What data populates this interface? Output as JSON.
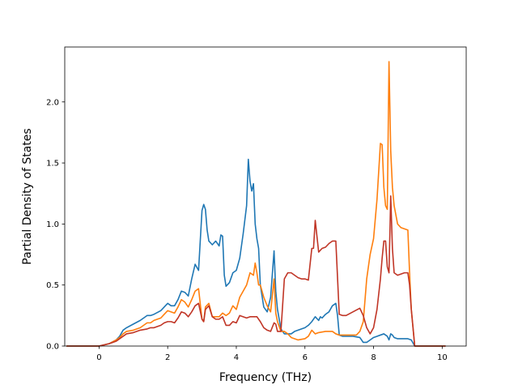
{
  "chart_data": {
    "type": "line",
    "title": "",
    "xlabel": "Frequency (THz)",
    "ylabel": "Partial Density of States",
    "xlim": [
      -1.0,
      10.7
    ],
    "ylim": [
      0.0,
      2.45
    ],
    "xticks": [
      0,
      2,
      4,
      6,
      8,
      10
    ],
    "yticks": [
      0.0,
      0.5,
      1.0,
      1.5,
      2.0
    ],
    "xtick_labels": [
      "0",
      "2",
      "4",
      "6",
      "8",
      "10"
    ],
    "ytick_labels": [
      "0.0",
      "0.5",
      "1.0",
      "1.5",
      "2.0"
    ],
    "grid": false,
    "legend": "none",
    "series": [
      {
        "color": "#1f77b4",
        "x": [
          -0.95,
          0.0,
          0.3,
          0.5,
          0.6,
          0.7,
          0.8,
          1.0,
          1.2,
          1.4,
          1.5,
          1.6,
          1.8,
          1.9,
          2.0,
          2.1,
          2.2,
          2.3,
          2.4,
          2.5,
          2.6,
          2.7,
          2.8,
          2.9,
          3.0,
          3.05,
          3.1,
          3.15,
          3.2,
          3.3,
          3.4,
          3.5,
          3.55,
          3.6,
          3.65,
          3.7,
          3.8,
          3.9,
          4.0,
          4.1,
          4.2,
          4.3,
          4.35,
          4.4,
          4.45,
          4.5,
          4.55,
          4.6,
          4.65,
          4.7,
          4.8,
          4.9,
          5.0,
          5.1,
          5.15,
          5.2,
          5.25,
          5.3,
          5.4,
          5.5,
          5.6,
          5.7,
          5.8,
          5.9,
          6.0,
          6.1,
          6.2,
          6.3,
          6.4,
          6.45,
          6.5,
          6.6,
          6.7,
          6.8,
          6.9,
          6.95,
          7.0,
          7.1,
          7.2,
          7.4,
          7.6,
          7.7,
          7.8,
          7.9,
          8.0,
          8.1,
          8.2,
          8.3,
          8.4,
          8.45,
          8.5,
          8.55,
          8.6,
          8.7,
          8.8,
          9.0,
          9.1,
          9.2,
          10.1
        ],
        "y": [
          0.0,
          0.0,
          0.02,
          0.05,
          0.08,
          0.13,
          0.15,
          0.18,
          0.21,
          0.25,
          0.25,
          0.26,
          0.29,
          0.32,
          0.35,
          0.33,
          0.33,
          0.38,
          0.45,
          0.44,
          0.41,
          0.55,
          0.67,
          0.62,
          1.11,
          1.16,
          1.12,
          0.95,
          0.86,
          0.83,
          0.86,
          0.82,
          0.91,
          0.9,
          0.58,
          0.49,
          0.52,
          0.6,
          0.62,
          0.72,
          0.92,
          1.15,
          1.53,
          1.35,
          1.27,
          1.33,
          1.0,
          0.88,
          0.8,
          0.5,
          0.32,
          0.28,
          0.4,
          0.78,
          0.45,
          0.3,
          0.22,
          0.14,
          0.1,
          0.1,
          0.1,
          0.12,
          0.13,
          0.14,
          0.15,
          0.17,
          0.2,
          0.24,
          0.21,
          0.24,
          0.23,
          0.26,
          0.28,
          0.33,
          0.35,
          0.25,
          0.09,
          0.08,
          0.08,
          0.08,
          0.07,
          0.03,
          0.03,
          0.05,
          0.07,
          0.08,
          0.09,
          0.1,
          0.08,
          0.05,
          0.1,
          0.09,
          0.07,
          0.06,
          0.06,
          0.06,
          0.05,
          0.0,
          0.0
        ]
      },
      {
        "color": "#ff7f0e",
        "x": [
          -0.95,
          0.0,
          0.3,
          0.5,
          0.6,
          0.7,
          0.8,
          1.0,
          1.2,
          1.4,
          1.5,
          1.6,
          1.8,
          1.9,
          2.0,
          2.1,
          2.2,
          2.3,
          2.4,
          2.5,
          2.6,
          2.7,
          2.8,
          2.9,
          3.0,
          3.05,
          3.1,
          3.2,
          3.3,
          3.4,
          3.5,
          3.6,
          3.7,
          3.8,
          3.9,
          4.0,
          4.1,
          4.2,
          4.3,
          4.4,
          4.5,
          4.55,
          4.6,
          4.65,
          4.7,
          4.8,
          4.9,
          5.0,
          5.1,
          5.15,
          5.2,
          5.3,
          5.4,
          5.5,
          5.6,
          5.8,
          6.0,
          6.1,
          6.2,
          6.3,
          6.4,
          6.6,
          6.8,
          6.9,
          7.0,
          7.2,
          7.4,
          7.5,
          7.6,
          7.7,
          7.8,
          7.9,
          8.0,
          8.1,
          8.2,
          8.25,
          8.3,
          8.35,
          8.4,
          8.45,
          8.5,
          8.55,
          8.6,
          8.7,
          8.8,
          9.0,
          9.05,
          9.1,
          9.2,
          10.1
        ],
        "y": [
          0.0,
          0.0,
          0.02,
          0.05,
          0.07,
          0.1,
          0.12,
          0.13,
          0.15,
          0.19,
          0.19,
          0.21,
          0.23,
          0.26,
          0.29,
          0.28,
          0.27,
          0.32,
          0.38,
          0.36,
          0.32,
          0.38,
          0.45,
          0.47,
          0.22,
          0.2,
          0.32,
          0.35,
          0.24,
          0.24,
          0.24,
          0.27,
          0.25,
          0.27,
          0.33,
          0.3,
          0.4,
          0.45,
          0.5,
          0.6,
          0.58,
          0.68,
          0.6,
          0.5,
          0.5,
          0.4,
          0.33,
          0.28,
          0.55,
          0.27,
          0.2,
          0.12,
          0.12,
          0.1,
          0.07,
          0.05,
          0.06,
          0.08,
          0.13,
          0.1,
          0.11,
          0.12,
          0.12,
          0.1,
          0.09,
          0.09,
          0.09,
          0.09,
          0.12,
          0.2,
          0.55,
          0.75,
          0.88,
          1.2,
          1.66,
          1.65,
          1.3,
          1.15,
          1.12,
          2.33,
          1.6,
          1.3,
          1.15,
          1.0,
          0.97,
          0.95,
          0.6,
          0.3,
          0.0,
          0.0
        ]
      },
      {
        "color": "#c03526",
        "x": [
          -0.95,
          0.0,
          0.3,
          0.5,
          0.6,
          0.7,
          0.8,
          1.0,
          1.2,
          1.4,
          1.5,
          1.6,
          1.8,
          1.9,
          2.0,
          2.1,
          2.2,
          2.3,
          2.4,
          2.5,
          2.6,
          2.7,
          2.8,
          2.9,
          3.0,
          3.05,
          3.1,
          3.2,
          3.3,
          3.4,
          3.5,
          3.6,
          3.7,
          3.8,
          3.9,
          4.0,
          4.1,
          4.2,
          4.3,
          4.4,
          4.5,
          4.6,
          4.7,
          4.8,
          4.9,
          5.0,
          5.1,
          5.15,
          5.2,
          5.3,
          5.4,
          5.5,
          5.6,
          5.8,
          5.9,
          6.0,
          6.1,
          6.2,
          6.25,
          6.3,
          6.35,
          6.4,
          6.5,
          6.6,
          6.7,
          6.8,
          6.9,
          7.0,
          7.1,
          7.2,
          7.4,
          7.6,
          7.7,
          7.8,
          7.9,
          8.0,
          8.1,
          8.2,
          8.25,
          8.3,
          8.35,
          8.4,
          8.45,
          8.5,
          8.55,
          8.6,
          8.7,
          8.8,
          8.9,
          9.0,
          9.05,
          9.1,
          9.2,
          10.1
        ],
        "y": [
          0.0,
          0.0,
          0.02,
          0.04,
          0.06,
          0.08,
          0.1,
          0.11,
          0.13,
          0.14,
          0.15,
          0.15,
          0.17,
          0.19,
          0.2,
          0.2,
          0.19,
          0.23,
          0.28,
          0.27,
          0.24,
          0.28,
          0.33,
          0.35,
          0.22,
          0.2,
          0.3,
          0.33,
          0.24,
          0.22,
          0.22,
          0.24,
          0.17,
          0.17,
          0.2,
          0.19,
          0.25,
          0.24,
          0.23,
          0.24,
          0.24,
          0.24,
          0.2,
          0.15,
          0.13,
          0.12,
          0.19,
          0.18,
          0.12,
          0.12,
          0.55,
          0.6,
          0.6,
          0.56,
          0.55,
          0.55,
          0.54,
          0.8,
          0.8,
          1.03,
          0.9,
          0.77,
          0.8,
          0.81,
          0.84,
          0.86,
          0.86,
          0.26,
          0.25,
          0.25,
          0.28,
          0.31,
          0.25,
          0.15,
          0.1,
          0.15,
          0.3,
          0.55,
          0.72,
          0.86,
          0.86,
          0.65,
          0.6,
          1.23,
          0.8,
          0.6,
          0.58,
          0.59,
          0.6,
          0.6,
          0.5,
          0.3,
          0.0,
          0.0
        ]
      }
    ]
  }
}
